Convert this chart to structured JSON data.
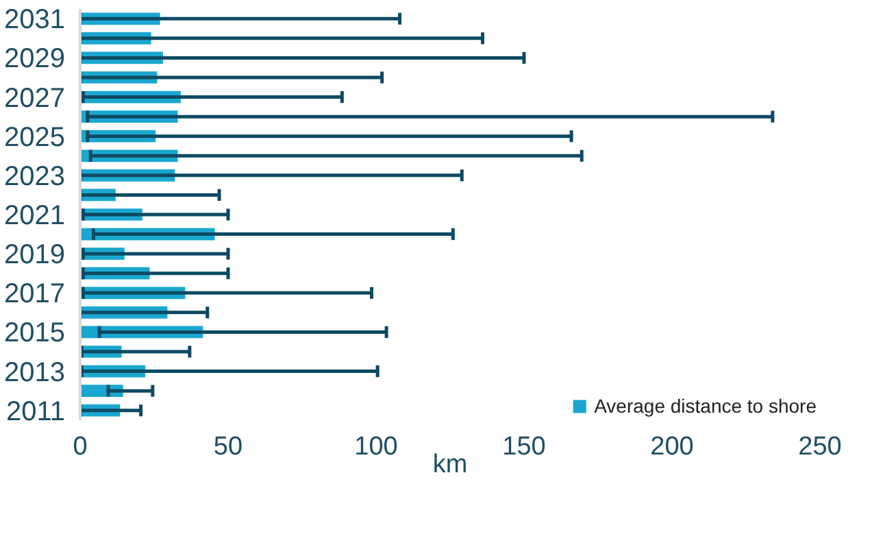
{
  "chart_data": {
    "type": "bar",
    "orientation": "horizontal",
    "xlabel": "km",
    "categories": [
      "2031",
      null,
      "2029",
      null,
      "2027",
      null,
      "2025",
      null,
      "2023",
      null,
      "2021",
      null,
      "2019",
      null,
      "2017",
      null,
      "2015",
      null,
      "2013",
      null,
      "2011"
    ],
    "series": [
      {
        "name": "Average distance to shore",
        "color": "#1aa7cf",
        "values": [
          27,
          24,
          28,
          26,
          34,
          33,
          25.5,
          33,
          32,
          12,
          21,
          45.5,
          15,
          23.5,
          35.5,
          29.5,
          41.5,
          14,
          22,
          14.5,
          13.5
        ],
        "errors": [
          [
            0,
            108
          ],
          [
            0,
            136
          ],
          [
            0,
            150
          ],
          [
            0,
            102
          ],
          [
            1,
            88.5
          ],
          [
            2.5,
            234
          ],
          [
            2.5,
            166
          ],
          [
            3.5,
            169.5
          ],
          [
            0,
            129
          ],
          [
            0,
            47
          ],
          [
            1,
            50
          ],
          [
            4.5,
            126
          ],
          [
            1,
            50
          ],
          [
            1,
            50
          ],
          [
            1,
            98.5
          ],
          [
            0,
            43
          ],
          [
            6.5,
            103.5
          ],
          [
            0.5,
            37
          ],
          [
            0.5,
            100.5
          ],
          [
            9.5,
            24.5
          ],
          [
            0,
            20.5
          ]
        ]
      }
    ],
    "xlim": [
      0,
      250
    ],
    "xticks": [
      0,
      50,
      100,
      150,
      200,
      250
    ],
    "legend": "bottom",
    "grid": false
  }
}
